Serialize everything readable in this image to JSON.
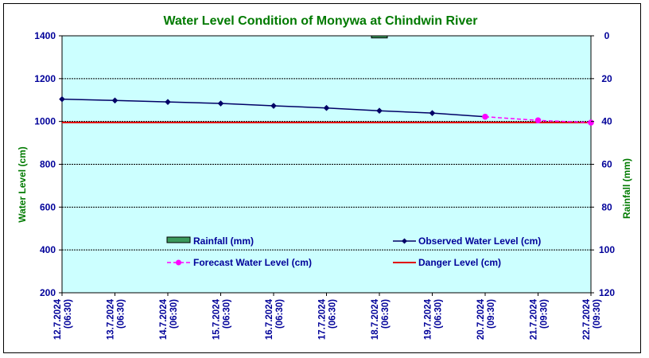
{
  "chart_data": {
    "type": "line",
    "title": "Water Level Condition of Monywa at Chindwin River",
    "ylabel": "Water Level (cm)",
    "y2label": "Rainfall (mm)",
    "ylim": [
      200,
      1400
    ],
    "y2lim": [
      120,
      0
    ],
    "yticks": [
      "1400",
      "1200",
      "1000",
      "800",
      "600",
      "400",
      "200"
    ],
    "y2ticks": [
      "0",
      "20",
      "40",
      "60",
      "80",
      "100",
      "120"
    ],
    "grid": true,
    "categories": [
      {
        "date": "12.7.2024",
        "time": "(06:30)"
      },
      {
        "date": "13.7.2024",
        "time": "(06:30)"
      },
      {
        "date": "14.7.2024",
        "time": "(06:30)"
      },
      {
        "date": "15.7.2024",
        "time": "(06:30)"
      },
      {
        "date": "16.7.2024",
        "time": "(06:30)"
      },
      {
        "date": "17.7.2024",
        "time": "(06:30)"
      },
      {
        "date": "18.7.2024",
        "time": "(06:30)"
      },
      {
        "date": "19.7.2024",
        "time": "(06:30)"
      },
      {
        "date": "20.7.2024",
        "time": "(09:30)"
      },
      {
        "date": "21.7.2024",
        "time": "(09:30)"
      },
      {
        "date": "22.7.2024",
        "time": "(09:30)"
      }
    ],
    "series": [
      {
        "name": "Rainfall (mm)",
        "kind": "bar",
        "axis": "right",
        "color": "#3a9a5c",
        "values": [
          0,
          0,
          0,
          0,
          0,
          0,
          1,
          0,
          null,
          null,
          null
        ]
      },
      {
        "name": "Observed Water Level (cm)",
        "kind": "line",
        "color": "#000066",
        "marker": "diamond",
        "values": [
          1104,
          1098,
          1091,
          1084,
          1073,
          1063,
          1050,
          1039,
          1022,
          null,
          null
        ]
      },
      {
        "name": "Forecast Water Level (cm)",
        "kind": "dashed-line",
        "color": "#ff00ff",
        "marker": "circle",
        "values": [
          null,
          null,
          null,
          null,
          null,
          null,
          null,
          null,
          1022,
          1005,
          995
        ]
      },
      {
        "name": "Danger Level (cm)",
        "kind": "line",
        "color": "#e00000",
        "values": [
          995,
          995,
          995,
          995,
          995,
          995,
          995,
          995,
          995,
          995,
          995
        ]
      }
    ],
    "legend_position": "bottom-inside",
    "colors": {
      "plot_bg": "#ccffff",
      "title": "#007a00",
      "ticks": "#000099"
    }
  }
}
